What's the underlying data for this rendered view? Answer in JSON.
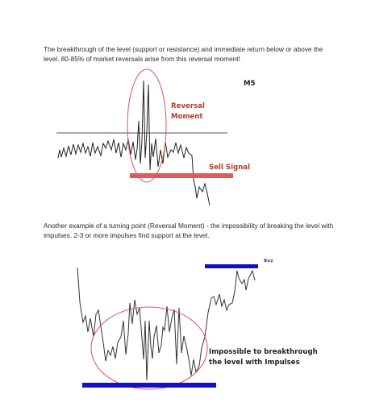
{
  "paragraph_1": "The breakthrough of the level (support or resistance) and immediate return below or above the level. 80-85% of market reversals arise from this reversal moment!",
  "paragraph_2": "Another example of a turning point (Reversal Moment) - the impossibility of breaking the level with impulses. 2-3 or more impulses find support at the level.",
  "chart_1": {
    "timeframe_label": "M5",
    "reversal_label_line1": "Reversal",
    "reversal_label_line2": "Moment",
    "signal_label": "Sell Signal",
    "colors": {
      "level_line": "#555555",
      "signal_bar": "#e85757",
      "ellipse": "#e05050",
      "price": "#222222"
    }
  },
  "chart_2": {
    "buy_label": "Buy",
    "caption_line1": "Impossible to breakthrough",
    "caption_line2": "the level with Impulses",
    "colors": {
      "level_bar": "#1010cc",
      "ellipse": "#e05050",
      "price": "#333333"
    }
  }
}
